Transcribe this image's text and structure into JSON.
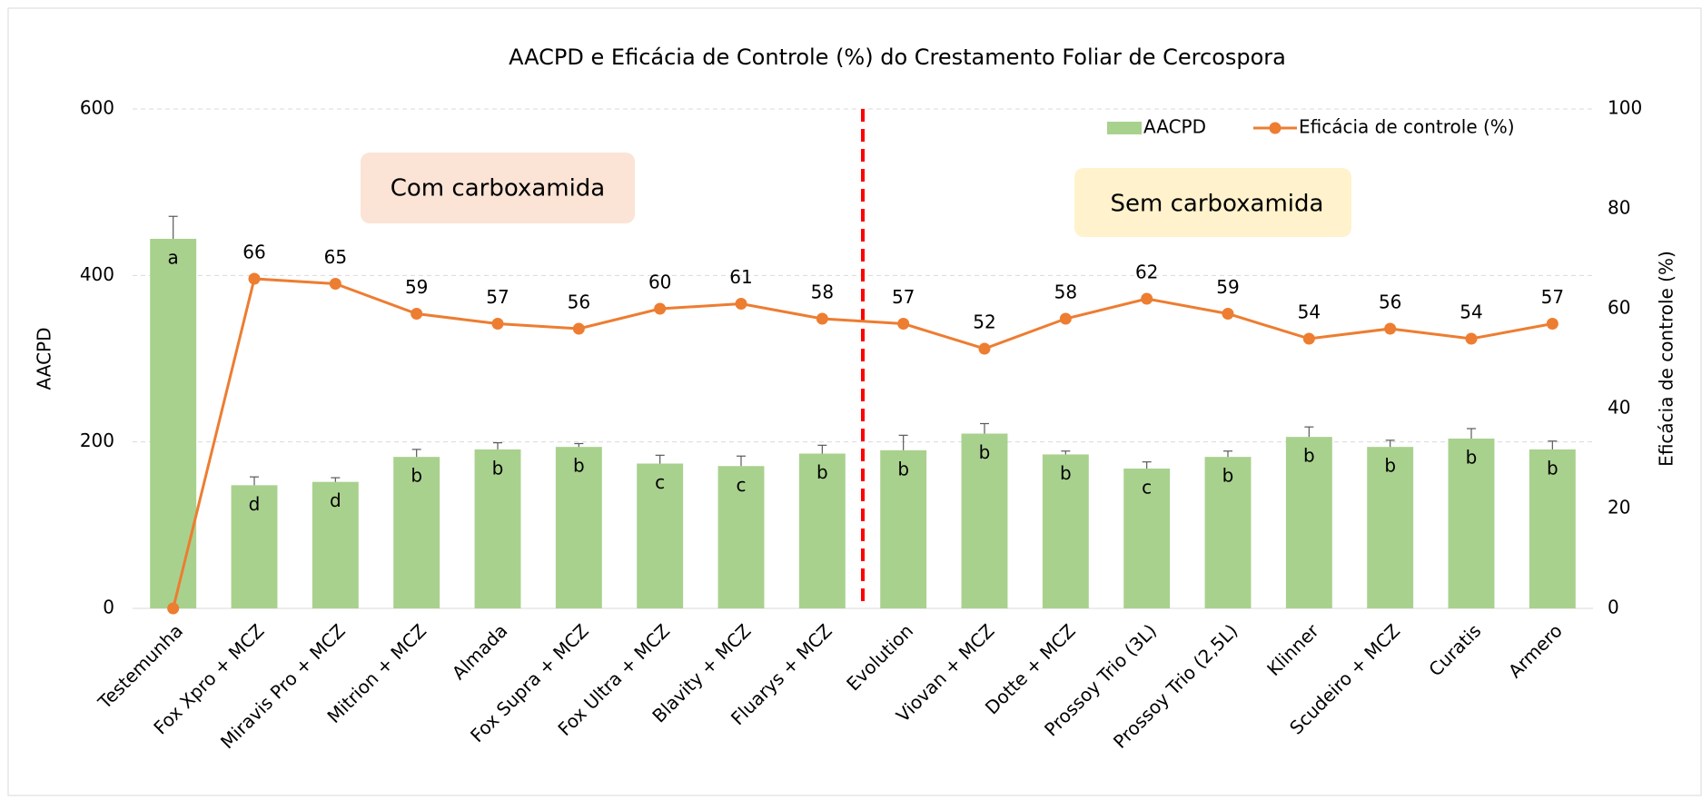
{
  "chart_data": {
    "type": "bar_line",
    "title": "AACPD e Eficácia de Controle (%) do Crestamento Foliar de Cercospora",
    "ylabel": "AACPD",
    "y2label": "Eficácia de controle (%)",
    "categories": [
      "Testemunha",
      "Fox Xpro + MCZ",
      "Miravis Pro + MCZ",
      "Mitrion + MCZ",
      "Almada",
      "Fox Supra + MCZ",
      "Fox Ultra + MCZ",
      "Blavity + MCZ",
      "Fluarys + MCZ",
      "Evolution",
      "Viovan + MCZ",
      "Dotte + MCZ",
      "Prossoy Trio (3L)",
      "Prossoy Trio (2,5L)",
      "Klinner",
      "Scudeiro + MCZ",
      "Curatis",
      "Armero"
    ],
    "series": [
      {
        "name": "AACPD",
        "type": "bar",
        "color": "#a9d18e",
        "values": [
          444,
          148,
          152,
          182,
          191,
          194,
          174,
          171,
          186,
          190,
          210,
          185,
          168,
          182,
          206,
          194,
          204,
          191
        ],
        "errors": [
          27,
          10,
          5,
          9,
          8,
          4,
          10,
          12,
          10,
          18,
          12,
          4,
          8,
          7,
          12,
          8,
          12,
          10
        ],
        "labels": [
          "a",
          "d",
          "d",
          "b",
          "b",
          "b",
          "c",
          "c",
          "b",
          "b",
          "b",
          "b",
          "c",
          "b",
          "b",
          "b",
          "b",
          "b"
        ]
      },
      {
        "name": "Eficácia de controle (%)",
        "type": "line",
        "axis": "y2",
        "color": "#ed7d31",
        "values": [
          0,
          66,
          65,
          59,
          57,
          56,
          60,
          61,
          58,
          57,
          52,
          58,
          62,
          59,
          54,
          56,
          54,
          57
        ],
        "value_labels": [
          null,
          "66",
          "65",
          "59",
          "57",
          "56",
          "60",
          "61",
          "58",
          "57",
          "52",
          "58",
          "62",
          "59",
          "54",
          "56",
          "54",
          "57"
        ]
      }
    ],
    "annotations": [
      "Com carboxamida",
      "Sem carboxamida"
    ],
    "divider_after": 8,
    "ylim": [
      0,
      600
    ],
    "yticks": [
      0,
      200,
      400,
      600
    ],
    "y2lim": [
      0,
      100
    ],
    "y2ticks": [
      0,
      20,
      40,
      60,
      80,
      100
    ],
    "grid": true,
    "legend": "top-right"
  }
}
